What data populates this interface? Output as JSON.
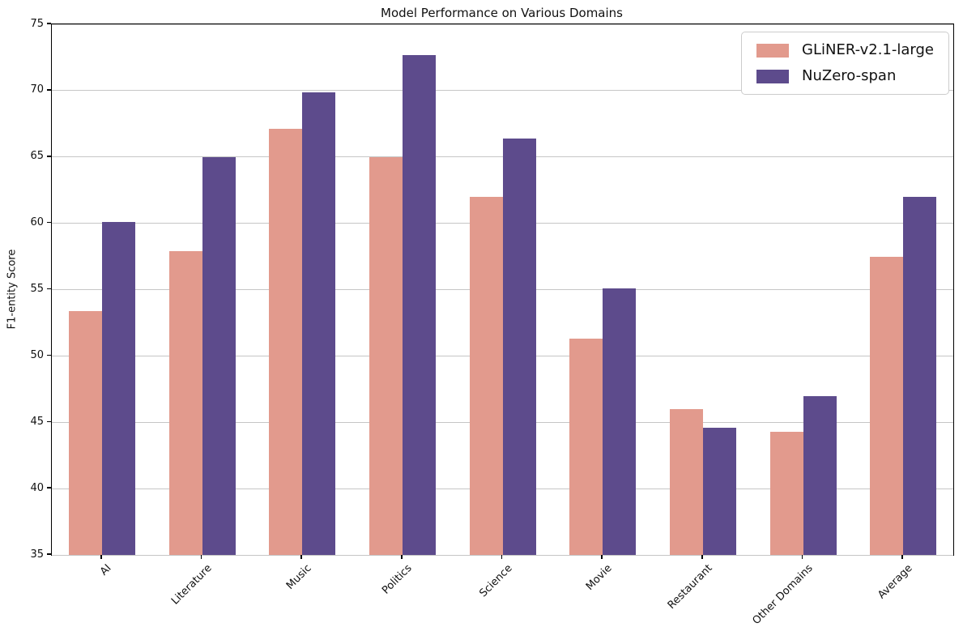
{
  "chart_data": {
    "type": "bar",
    "title": "Model Performance on Various Domains",
    "xlabel": "",
    "ylabel": "F1-entity Score",
    "ylim": [
      35,
      75
    ],
    "yticks": [
      35,
      40,
      45,
      50,
      55,
      60,
      65,
      70,
      75
    ],
    "grid": "horizontal",
    "legend_position": "upper right",
    "categories": [
      "AI",
      "Literature",
      "Music",
      "Politics",
      "Science",
      "Movie",
      "Restaurant",
      "Other Domains",
      "Average"
    ],
    "series": [
      {
        "name": "GLiNER-v2.1-large",
        "color": "#e29a8d",
        "values": [
          53.4,
          57.9,
          67.1,
          65.0,
          62.0,
          51.3,
          46.0,
          44.3,
          57.5
        ]
      },
      {
        "name": "NuZero-span",
        "color": "#5d4b8c",
        "values": [
          60.1,
          65.0,
          69.9,
          72.7,
          66.4,
          55.1,
          44.6,
          47.0,
          62.0
        ]
      }
    ],
    "colors": {
      "background": "#ffffff",
      "grid": "#c6c6c6",
      "axis": "#000000"
    }
  }
}
